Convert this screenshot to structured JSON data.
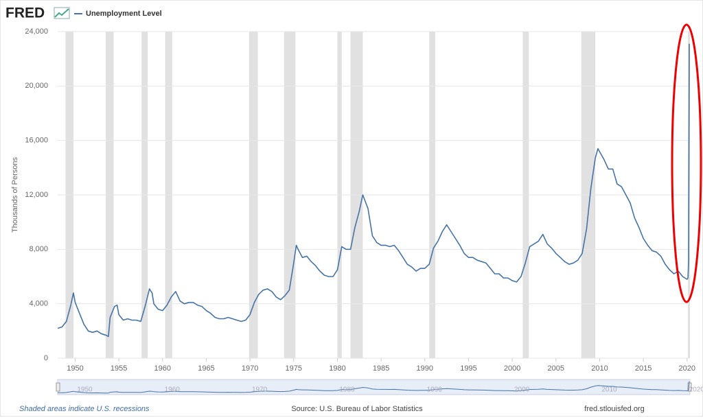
{
  "chart_data": {
    "type": "line",
    "logo": "FRED",
    "y_label": "Thousands of Persons",
    "footer_left": "Shaded areas indicate U.S. recessions",
    "footer_center": "Source: U.S. Bureau of Labor Statistics",
    "footer_right": "fred.stlouisfed.org",
    "xlim": [
      1948,
      2020.33
    ],
    "xticks": [
      1950,
      1955,
      1960,
      1965,
      1970,
      1975,
      1980,
      1985,
      1990,
      1995,
      2000,
      2005,
      2010,
      2015,
      2020
    ],
    "ylim": [
      0,
      24000
    ],
    "yticks": [
      0,
      {
        "value": 4000,
        "label": "4,000"
      },
      {
        "value": 8000,
        "label": "8,000"
      },
      {
        "value": 12000,
        "label": "12,000"
      },
      {
        "value": 16000,
        "label": "16,000"
      },
      {
        "value": 20000,
        "label": "20,000"
      },
      {
        "value": 24000,
        "label": "24,000"
      }
    ],
    "grid": true,
    "navigator_ticks": [
      1950,
      1960,
      1970,
      1980,
      1990,
      2000,
      2010,
      2020
    ],
    "recessions": [
      [
        1948.9,
        1949.8
      ],
      [
        1953.5,
        1954.4
      ],
      [
        1957.6,
        1958.3
      ],
      [
        1960.3,
        1961.1
      ],
      [
        1969.9,
        1970.9
      ],
      [
        1973.9,
        1975.2
      ],
      [
        1980.0,
        1980.5
      ],
      [
        1981.5,
        1982.9
      ],
      [
        1990.5,
        1991.2
      ],
      [
        2001.2,
        2001.9
      ],
      [
        2007.9,
        2009.5
      ],
      [
        2020.1,
        2020.33
      ]
    ],
    "x": [
      1948.0,
      1948.5,
      1949.0,
      1949.5,
      1949.8,
      1950.0,
      1950.5,
      1951.0,
      1951.5,
      1952.0,
      1952.5,
      1953.0,
      1953.5,
      1953.8,
      1954.0,
      1954.5,
      1954.8,
      1955.0,
      1955.5,
      1956.0,
      1956.5,
      1957.0,
      1957.5,
      1958.0,
      1958.5,
      1958.8,
      1959.0,
      1959.5,
      1960.0,
      1960.5,
      1961.0,
      1961.5,
      1962.0,
      1962.5,
      1963.0,
      1963.5,
      1964.0,
      1964.5,
      1965.0,
      1965.5,
      1966.0,
      1966.5,
      1967.0,
      1967.5,
      1968.0,
      1968.5,
      1969.0,
      1969.5,
      1970.0,
      1970.5,
      1971.0,
      1971.5,
      1972.0,
      1972.5,
      1973.0,
      1973.5,
      1974.0,
      1974.5,
      1975.0,
      1975.3,
      1975.5,
      1976.0,
      1976.5,
      1977.0,
      1977.5,
      1978.0,
      1978.5,
      1979.0,
      1979.5,
      1980.0,
      1980.5,
      1981.0,
      1981.5,
      1982.0,
      1982.5,
      1982.9,
      1983.5,
      1984.0,
      1984.5,
      1985.0,
      1985.5,
      1986.0,
      1986.5,
      1987.0,
      1987.5,
      1988.0,
      1988.5,
      1989.0,
      1989.5,
      1990.0,
      1990.5,
      1991.0,
      1991.5,
      1992.0,
      1992.5,
      1993.0,
      1993.5,
      1994.0,
      1994.5,
      1995.0,
      1995.5,
      1996.0,
      1996.5,
      1997.0,
      1997.5,
      1998.0,
      1998.5,
      1999.0,
      1999.5,
      2000.0,
      2000.5,
      2001.0,
      2001.5,
      2002.0,
      2002.5,
      2003.0,
      2003.5,
      2004.0,
      2004.5,
      2005.0,
      2005.5,
      2006.0,
      2006.5,
      2007.0,
      2007.5,
      2008.0,
      2008.5,
      2009.0,
      2009.5,
      2009.8,
      2010.5,
      2011.0,
      2011.5,
      2012.0,
      2012.5,
      2013.0,
      2013.5,
      2014.0,
      2014.5,
      2015.0,
      2015.5,
      2016.0,
      2016.5,
      2017.0,
      2017.5,
      2018.0,
      2018.5,
      2019.0,
      2019.5,
      2020.0,
      2020.1,
      2020.17,
      2020.25
    ],
    "series": [
      {
        "name": "Unemployment Level",
        "color": "#4572a7",
        "values": [
          2200,
          2300,
          2700,
          3900,
          4800,
          4100,
          3300,
          2500,
          2000,
          1900,
          2000,
          1800,
          1700,
          1600,
          3000,
          3800,
          3900,
          3200,
          2800,
          2900,
          2800,
          2800,
          2700,
          3800,
          5100,
          4800,
          4000,
          3600,
          3500,
          3900,
          4500,
          4900,
          4200,
          4000,
          4100,
          4100,
          3900,
          3800,
          3500,
          3300,
          3000,
          2900,
          2900,
          3000,
          2900,
          2800,
          2700,
          2800,
          3200,
          4100,
          4700,
          5000,
          5100,
          4900,
          4500,
          4300,
          4600,
          5000,
          7000,
          8300,
          8000,
          7400,
          7500,
          7100,
          6800,
          6400,
          6100,
          6000,
          6000,
          6500,
          8200,
          8000,
          8000,
          9600,
          10800,
          12000,
          11000,
          9000,
          8500,
          8300,
          8300,
          8200,
          8300,
          7900,
          7400,
          6900,
          6700,
          6400,
          6600,
          6600,
          6900,
          8100,
          8600,
          9300,
          9800,
          9300,
          8800,
          8300,
          7700,
          7400,
          7400,
          7200,
          7100,
          7000,
          6600,
          6200,
          6200,
          5900,
          5900,
          5700,
          5600,
          6000,
          7000,
          8200,
          8400,
          8600,
          9100,
          8400,
          8100,
          7700,
          7400,
          7100,
          6900,
          7000,
          7200,
          7700,
          9500,
          12500,
          14700,
          15400,
          14600,
          13900,
          13900,
          12800,
          12600,
          12000,
          11400,
          10300,
          9600,
          8800,
          8300,
          7900,
          7800,
          7500,
          6900,
          6500,
          6200,
          6400,
          6000,
          5800,
          5900,
          7100,
          23100
        ]
      }
    ]
  }
}
